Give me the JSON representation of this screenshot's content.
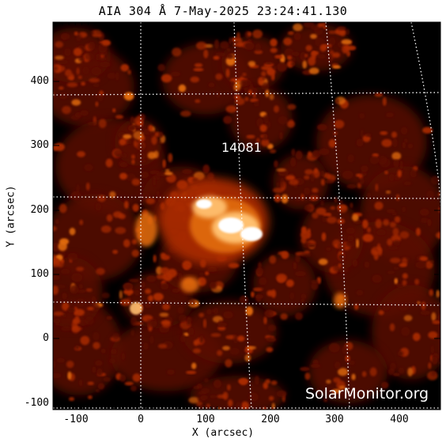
{
  "title": "AIA 304 Å  7-May-2025 23:24:41.130",
  "region_label": "14081",
  "watermark": "SolarMonitor.org",
  "axes": {
    "xlabel": "X (arcsec)",
    "ylabel": "Y (arcsec)",
    "xticks": [
      "-100",
      "0",
      "100",
      "200",
      "300",
      "400"
    ],
    "yticks": [
      "400",
      "300",
      "200",
      "100",
      "0",
      "-100"
    ]
  },
  "colors": {
    "background": "#000000",
    "colormap": [
      "#000000",
      "#5a0a00",
      "#a82a00",
      "#e06a10",
      "#ffc070",
      "#ffffff"
    ],
    "grid": "#ffffff"
  }
}
